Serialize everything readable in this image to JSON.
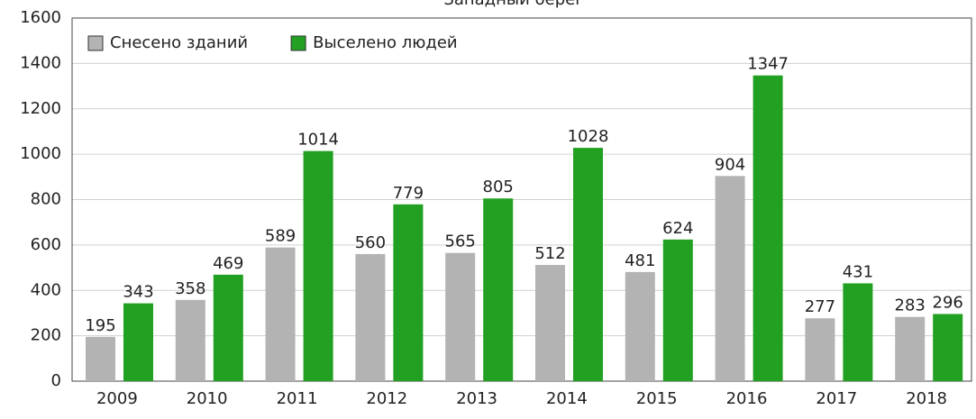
{
  "chart_data": {
    "type": "bar",
    "title": "Западный берег",
    "categories": [
      "2009",
      "2010",
      "2011",
      "2012",
      "2013",
      "2014",
      "2015",
      "2016",
      "2017",
      "2018"
    ],
    "series": [
      {
        "name": "Снесено зданий",
        "color": "#b3b3b3",
        "values": [
          195,
          358,
          589,
          560,
          565,
          512,
          481,
          904,
          277,
          283
        ]
      },
      {
        "name": "Выселено людей",
        "color": "#22a022",
        "values": [
          343,
          469,
          1014,
          779,
          805,
          1028,
          624,
          1347,
          431,
          296
        ]
      }
    ],
    "ylim": [
      0,
      1600
    ],
    "yticks": [
      0,
      200,
      400,
      600,
      800,
      1000,
      1200,
      1400,
      1600
    ],
    "grid": true,
    "legend": "top-left"
  }
}
